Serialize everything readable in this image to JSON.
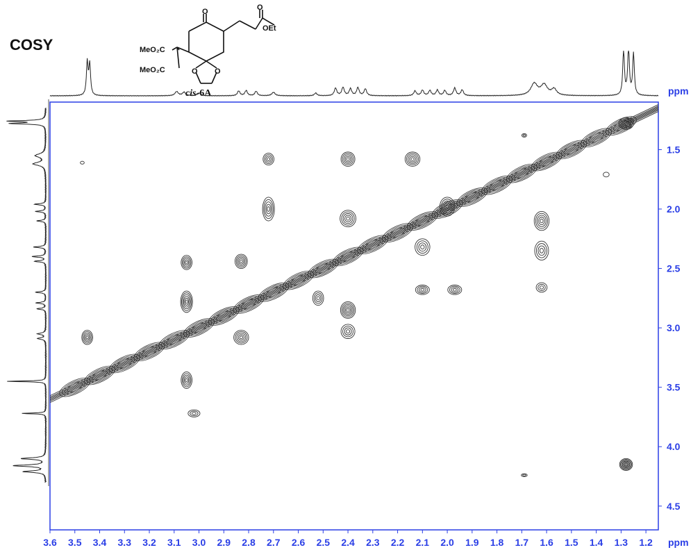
{
  "title": "COSY",
  "structure": {
    "label_name": "cis",
    "label_number": "-6A",
    "substituent_1": "MeO₂C",
    "substituent_2": "MeO₂C",
    "ester": "OEt",
    "ketone_o": "O",
    "ester_o": "O",
    "ketal_o_left": "O",
    "ketal_o_right": "O"
  },
  "chart_data": {
    "type": "heatmap",
    "subtype": "2D NMR COSY contour plot",
    "x_unit": "ppm",
    "y_unit": "ppm",
    "xlim": [
      3.6,
      1.15
    ],
    "ylim": [
      1.1,
      4.7
    ],
    "x_ticks": [
      3.6,
      3.5,
      3.4,
      3.3,
      3.2,
      3.1,
      3.0,
      2.9,
      2.8,
      2.7,
      2.6,
      2.5,
      2.4,
      2.3,
      2.2,
      2.1,
      2.0,
      1.9,
      1.8,
      1.7,
      1.6,
      1.5,
      1.4,
      1.3,
      1.2
    ],
    "x_tick_labels": [
      "3.6",
      "3.5",
      "3.4",
      "3.3",
      "3.2",
      "3.1",
      "3.0",
      "2.9",
      "2.8",
      "2.7",
      "2.6",
      "2.5",
      "2.4",
      "2.3",
      "2.2",
      "2.1",
      "2.0",
      "1.9",
      "1.8",
      "1.7",
      "1.6",
      "1.5",
      "1.4",
      "1.3",
      "1.2"
    ],
    "y_ticks": [
      1.5,
      2.0,
      2.5,
      3.0,
      3.5,
      4.0,
      4.5
    ],
    "y_tick_labels": [
      "1.5",
      "2.0",
      "2.5",
      "3.0",
      "3.5",
      "4.0",
      "4.5"
    ],
    "axis_color": "#2a3ee6",
    "contour_color": "#333333",
    "diagonal": {
      "from": [
        3.6,
        3.6
      ],
      "to": [
        1.15,
        1.15
      ]
    },
    "cross_peaks": [
      {
        "x": 3.45,
        "y": 3.08,
        "rx": 0.022,
        "ry": 0.06,
        "levels": 5
      },
      {
        "x": 3.05,
        "y": 2.45,
        "rx": 0.022,
        "ry": 0.06,
        "levels": 5
      },
      {
        "x": 3.05,
        "y": 2.78,
        "rx": 0.024,
        "ry": 0.09,
        "levels": 6
      },
      {
        "x": 3.05,
        "y": 3.44,
        "rx": 0.022,
        "ry": 0.07,
        "levels": 5
      },
      {
        "x": 3.02,
        "y": 3.72,
        "rx": 0.024,
        "ry": 0.03,
        "levels": 3
      },
      {
        "x": 2.83,
        "y": 2.44,
        "rx": 0.025,
        "ry": 0.06,
        "levels": 5
      },
      {
        "x": 2.83,
        "y": 3.08,
        "rx": 0.03,
        "ry": 0.06,
        "levels": 5
      },
      {
        "x": 2.72,
        "y": 1.58,
        "rx": 0.022,
        "ry": 0.05,
        "levels": 4
      },
      {
        "x": 2.72,
        "y": 2.0,
        "rx": 0.024,
        "ry": 0.1,
        "levels": 5
      },
      {
        "x": 2.4,
        "y": 1.58,
        "rx": 0.028,
        "ry": 0.06,
        "levels": 5
      },
      {
        "x": 2.4,
        "y": 2.08,
        "rx": 0.032,
        "ry": 0.07,
        "levels": 5
      },
      {
        "x": 2.4,
        "y": 2.85,
        "rx": 0.03,
        "ry": 0.07,
        "levels": 6
      },
      {
        "x": 2.4,
        "y": 3.03,
        "rx": 0.028,
        "ry": 0.06,
        "levels": 4
      },
      {
        "x": 2.52,
        "y": 2.75,
        "rx": 0.022,
        "ry": 0.06,
        "levels": 4
      },
      {
        "x": 2.14,
        "y": 1.58,
        "rx": 0.03,
        "ry": 0.06,
        "levels": 5
      },
      {
        "x": 2.1,
        "y": 2.32,
        "rx": 0.03,
        "ry": 0.07,
        "levels": 4
      },
      {
        "x": 2.1,
        "y": 2.68,
        "rx": 0.028,
        "ry": 0.04,
        "levels": 4
      },
      {
        "x": 1.97,
        "y": 2.68,
        "rx": 0.028,
        "ry": 0.04,
        "levels": 4
      },
      {
        "x": 2.0,
        "y": 1.98,
        "rx": 0.03,
        "ry": 0.08,
        "levels": 5
      },
      {
        "x": 1.62,
        "y": 2.1,
        "rx": 0.03,
        "ry": 0.08,
        "levels": 5
      },
      {
        "x": 1.62,
        "y": 2.35,
        "rx": 0.028,
        "ry": 0.08,
        "levels": 4
      },
      {
        "x": 1.62,
        "y": 2.66,
        "rx": 0.022,
        "ry": 0.04,
        "levels": 3
      },
      {
        "x": 1.28,
        "y": 4.15,
        "rx": 0.026,
        "ry": 0.05,
        "levels": 7
      },
      {
        "x": 1.28,
        "y": 1.28,
        "rx": 0.03,
        "ry": 0.05,
        "levels": 6
      },
      {
        "x": 1.69,
        "y": 4.24,
        "rx": 0.012,
        "ry": 0.012,
        "levels": 2
      },
      {
        "x": 1.69,
        "y": 1.38,
        "rx": 0.01,
        "ry": 0.015,
        "levels": 2
      },
      {
        "x": 1.36,
        "y": 1.71,
        "rx": 0.012,
        "ry": 0.02,
        "levels": 1
      },
      {
        "x": 3.47,
        "y": 1.61,
        "rx": 0.008,
        "ry": 0.012,
        "levels": 1
      }
    ],
    "proj_1d_top": [
      {
        "ppm": 3.45,
        "h": 0.95,
        "w": 0.004
      },
      {
        "ppm": 3.44,
        "h": 0.9,
        "w": 0.004
      },
      {
        "ppm": 3.09,
        "h": 0.12,
        "w": 0.008
      },
      {
        "ppm": 3.06,
        "h": 0.1,
        "w": 0.008
      },
      {
        "ppm": 3.0,
        "h": 0.08,
        "w": 0.008
      },
      {
        "ppm": 2.84,
        "h": 0.14,
        "w": 0.006
      },
      {
        "ppm": 2.81,
        "h": 0.15,
        "w": 0.006
      },
      {
        "ppm": 2.77,
        "h": 0.13,
        "w": 0.006
      },
      {
        "ppm": 2.7,
        "h": 0.1,
        "w": 0.008
      },
      {
        "ppm": 2.53,
        "h": 0.08,
        "w": 0.006
      },
      {
        "ppm": 2.45,
        "h": 0.22,
        "w": 0.006
      },
      {
        "ppm": 2.42,
        "h": 0.24,
        "w": 0.006
      },
      {
        "ppm": 2.39,
        "h": 0.2,
        "w": 0.006
      },
      {
        "ppm": 2.36,
        "h": 0.23,
        "w": 0.006
      },
      {
        "ppm": 2.33,
        "h": 0.2,
        "w": 0.006
      },
      {
        "ppm": 2.13,
        "h": 0.14,
        "w": 0.006
      },
      {
        "ppm": 2.1,
        "h": 0.16,
        "w": 0.006
      },
      {
        "ppm": 2.07,
        "h": 0.15,
        "w": 0.006
      },
      {
        "ppm": 2.04,
        "h": 0.16,
        "w": 0.006
      },
      {
        "ppm": 2.01,
        "h": 0.15,
        "w": 0.006
      },
      {
        "ppm": 1.97,
        "h": 0.22,
        "w": 0.006
      },
      {
        "ppm": 1.94,
        "h": 0.17,
        "w": 0.006
      },
      {
        "ppm": 1.65,
        "h": 0.34,
        "w": 0.016
      },
      {
        "ppm": 1.61,
        "h": 0.3,
        "w": 0.016
      },
      {
        "ppm": 1.57,
        "h": 0.18,
        "w": 0.012
      },
      {
        "ppm": 1.29,
        "h": 1.3,
        "w": 0.004
      },
      {
        "ppm": 1.27,
        "h": 1.4,
        "w": 0.004
      },
      {
        "ppm": 1.25,
        "h": 1.2,
        "w": 0.004
      }
    ],
    "proj_1d_left": [
      {
        "ppm": 1.26,
        "h": 0.9,
        "w": 0.006
      },
      {
        "ppm": 1.28,
        "h": 0.85,
        "w": 0.006
      },
      {
        "ppm": 1.55,
        "h": 0.25,
        "w": 0.018
      },
      {
        "ppm": 1.62,
        "h": 0.3,
        "w": 0.016
      },
      {
        "ppm": 1.96,
        "h": 0.28,
        "w": 0.006
      },
      {
        "ppm": 2.02,
        "h": 0.25,
        "w": 0.006
      },
      {
        "ppm": 2.1,
        "h": 0.22,
        "w": 0.006
      },
      {
        "ppm": 2.32,
        "h": 0.3,
        "w": 0.006
      },
      {
        "ppm": 2.4,
        "h": 0.34,
        "w": 0.006
      },
      {
        "ppm": 2.44,
        "h": 0.28,
        "w": 0.006
      },
      {
        "ppm": 2.7,
        "h": 0.26,
        "w": 0.006
      },
      {
        "ppm": 2.79,
        "h": 0.24,
        "w": 0.006
      },
      {
        "ppm": 2.84,
        "h": 0.22,
        "w": 0.006
      },
      {
        "ppm": 3.05,
        "h": 0.2,
        "w": 0.008
      },
      {
        "ppm": 3.09,
        "h": 0.2,
        "w": 0.008
      },
      {
        "ppm": 3.45,
        "h": 0.95,
        "w": 0.004
      },
      {
        "ppm": 3.72,
        "h": 0.6,
        "w": 0.004
      },
      {
        "ppm": 4.1,
        "h": 0.6,
        "w": 0.008
      },
      {
        "ppm": 4.16,
        "h": 0.8,
        "w": 0.008
      },
      {
        "ppm": 4.21,
        "h": 0.55,
        "w": 0.008
      }
    ]
  }
}
